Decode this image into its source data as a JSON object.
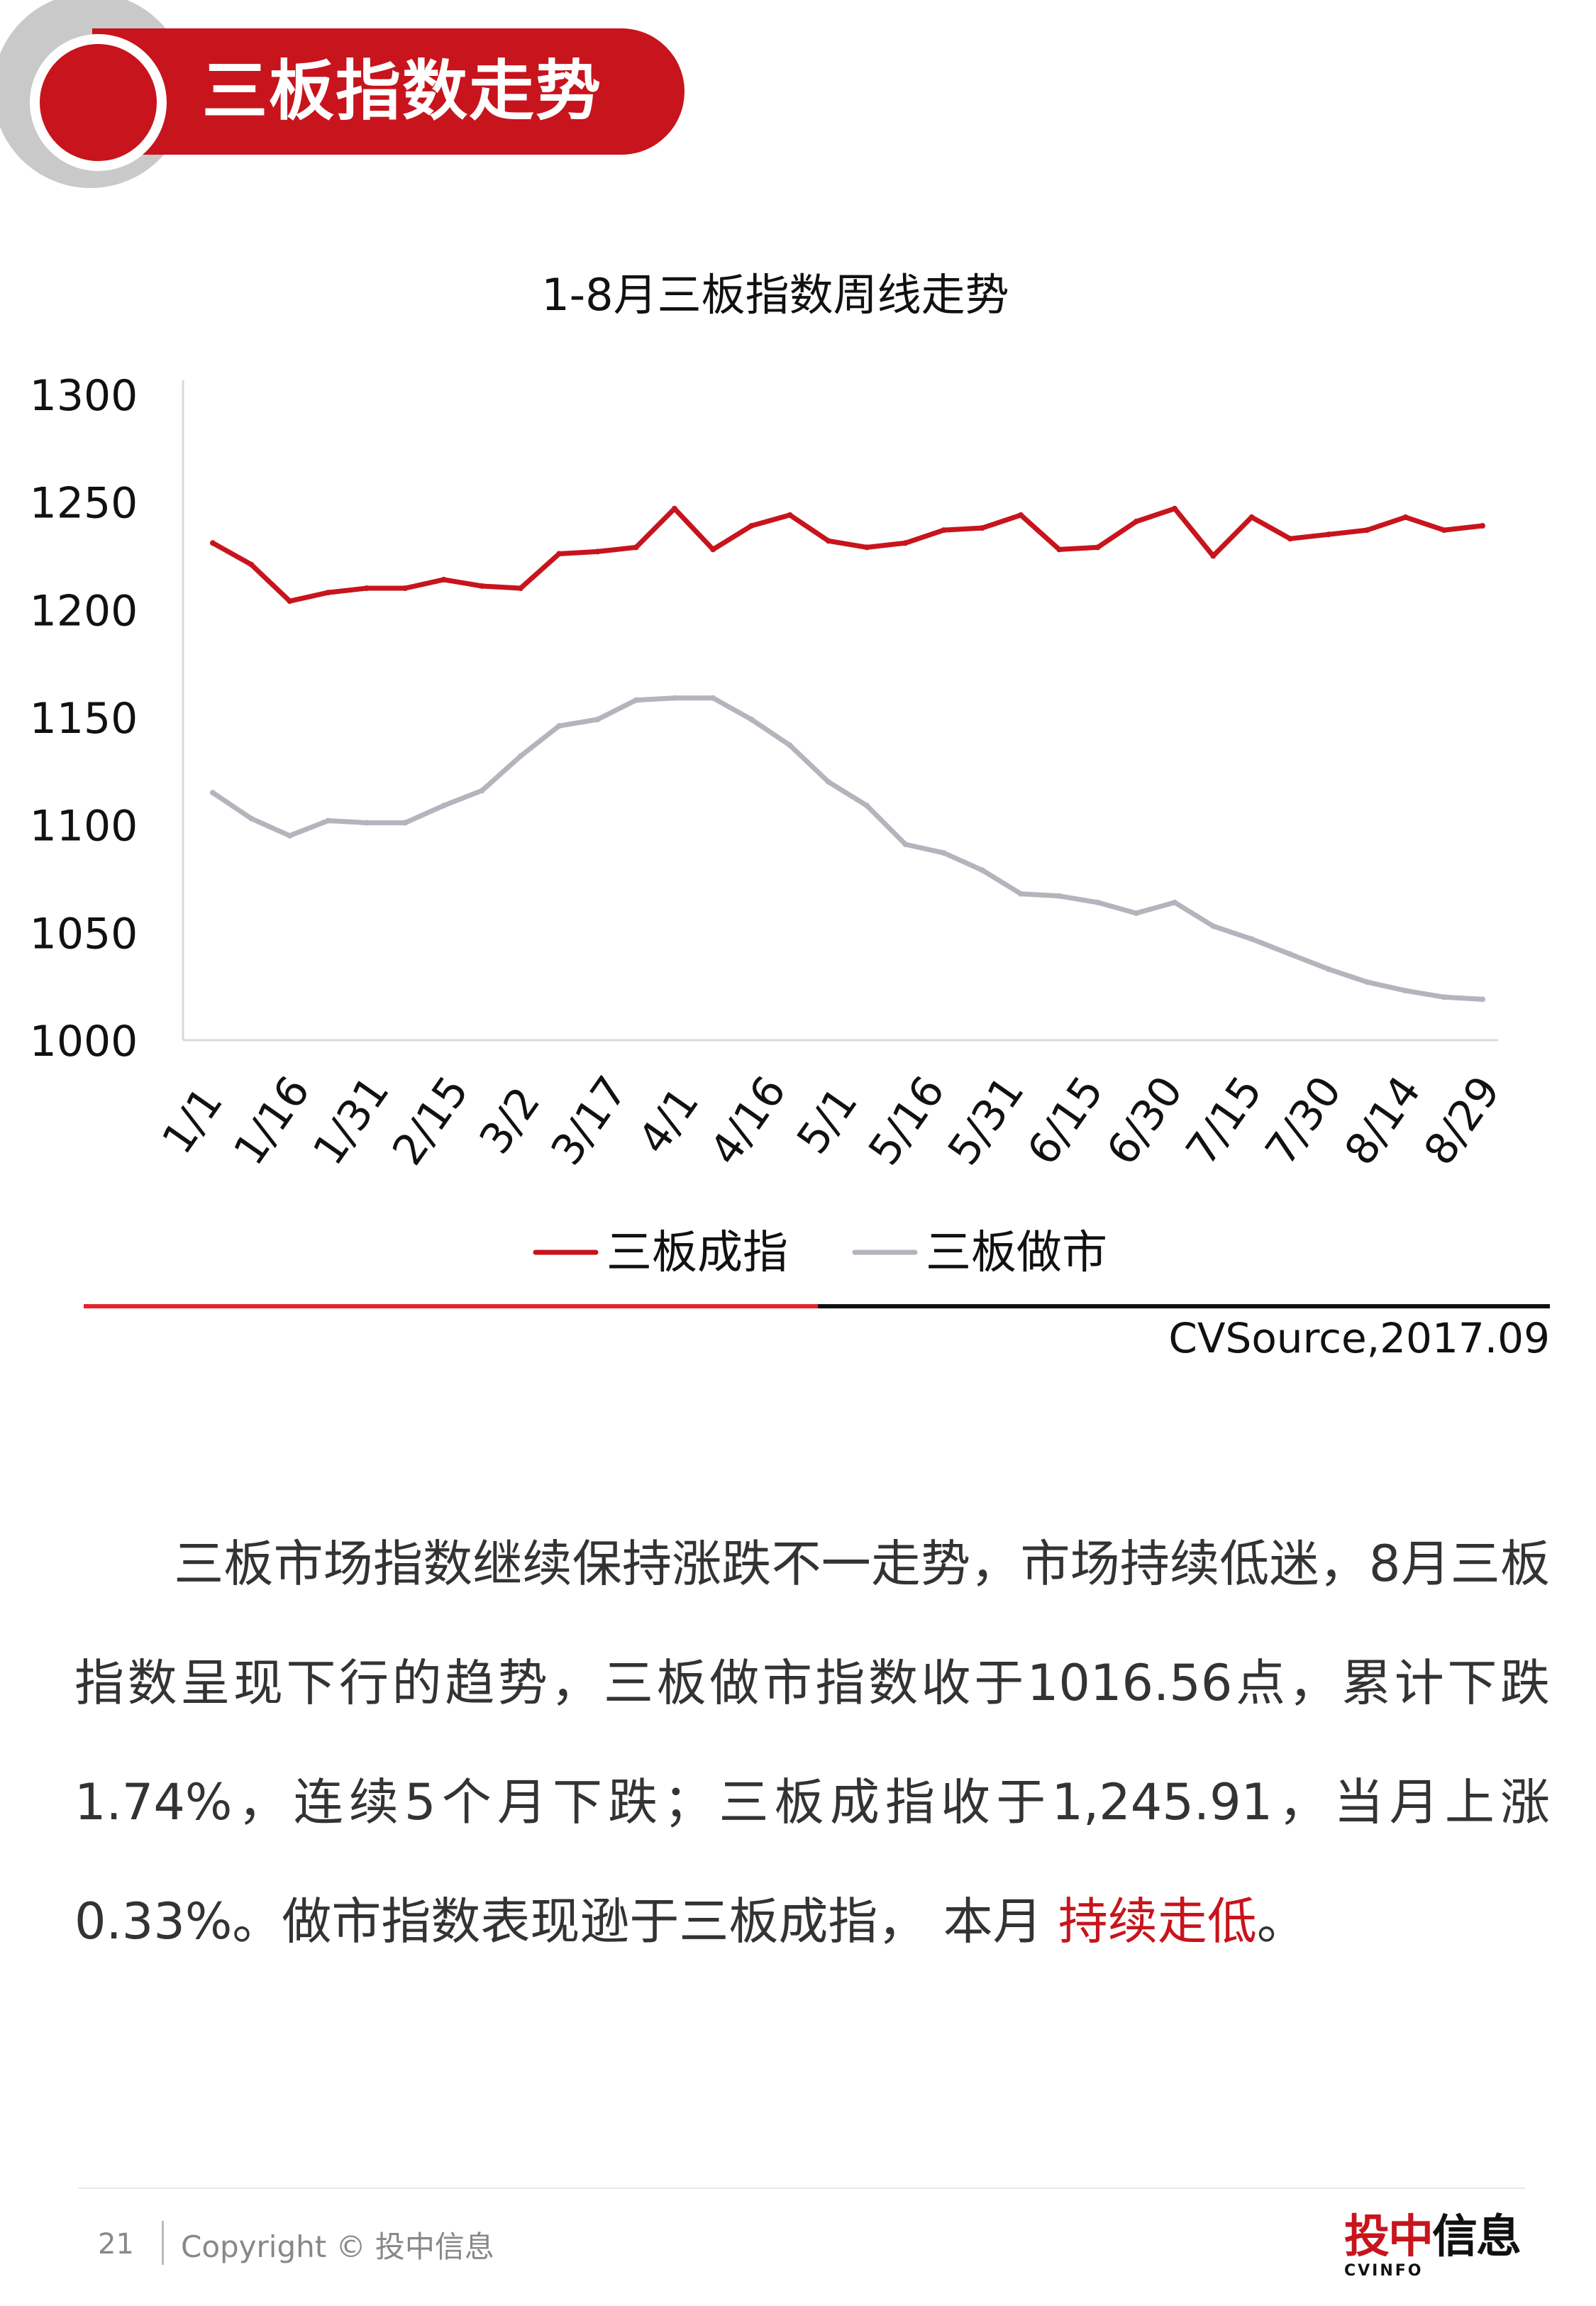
{
  "header": {
    "title": "三板指数走势"
  },
  "colors": {
    "accent": "#c8141c",
    "series_red": "#c8141c",
    "series_gray": "#b4b4bc",
    "axis": "#d9d9d9"
  },
  "chart_data": {
    "type": "line",
    "title": "1-8月三板指数周线走势",
    "xlabel": "",
    "ylabel": "",
    "ylim": [
      1000,
      1300
    ],
    "yticks": [
      1000,
      1050,
      1100,
      1150,
      1200,
      1250,
      1300
    ],
    "x_tick_labels": [
      "1/1",
      "1/16",
      "1/31",
      "2/15",
      "3/2",
      "3/17",
      "4/1",
      "4/16",
      "5/1",
      "5/16",
      "5/31",
      "6/15",
      "6/30",
      "7/15",
      "7/30",
      "8/14",
      "8/29"
    ],
    "grid": false,
    "legend_position": "bottom",
    "series": [
      {
        "name": "三板成指",
        "color": "#c8141c",
        "values": [
          1231,
          1221,
          1204,
          1208,
          1210,
          1210,
          1214,
          1211,
          1210,
          1226,
          1227,
          1229,
          1247,
          1228,
          1239,
          1244,
          1232,
          1229,
          1231,
          1237,
          1238,
          1244,
          1228,
          1229,
          1241,
          1247,
          1225,
          1243,
          1233,
          1235,
          1237,
          1243,
          1237,
          1239
        ]
      },
      {
        "name": "三板做市",
        "color": "#b4b4bc",
        "values": [
          1115,
          1103,
          1095,
          1102,
          1101,
          1101,
          1109,
          1116,
          1132,
          1146,
          1149,
          1158,
          1159,
          1159,
          1149,
          1137,
          1120,
          1109,
          1091,
          1087,
          1079,
          1068,
          1067,
          1064,
          1059,
          1064,
          1053,
          1047,
          1040,
          1033,
          1027,
          1023,
          1020,
          1019
        ]
      }
    ]
  },
  "source_note": "CVSource,2017.09",
  "paragraph": {
    "text_main": "三板市场指数继续保持涨跌不一走势，市场持续低迷，8月三板指数呈现下行的趋势，三板做市指数收于1016.56点，累计下跌1.74%，连续5个月下跌；三板成指收于1,245.91，当月上涨0.33%。做市指数表现逊于三板成指， 本月 ",
    "text_highlight": "持续走低",
    "text_end": "。"
  },
  "footer": {
    "page_number": "21",
    "copyright": "Copyright © 投中信息",
    "logo_text_red": "投中",
    "logo_text_black": "信息",
    "logo_sub": "CVINFO"
  }
}
